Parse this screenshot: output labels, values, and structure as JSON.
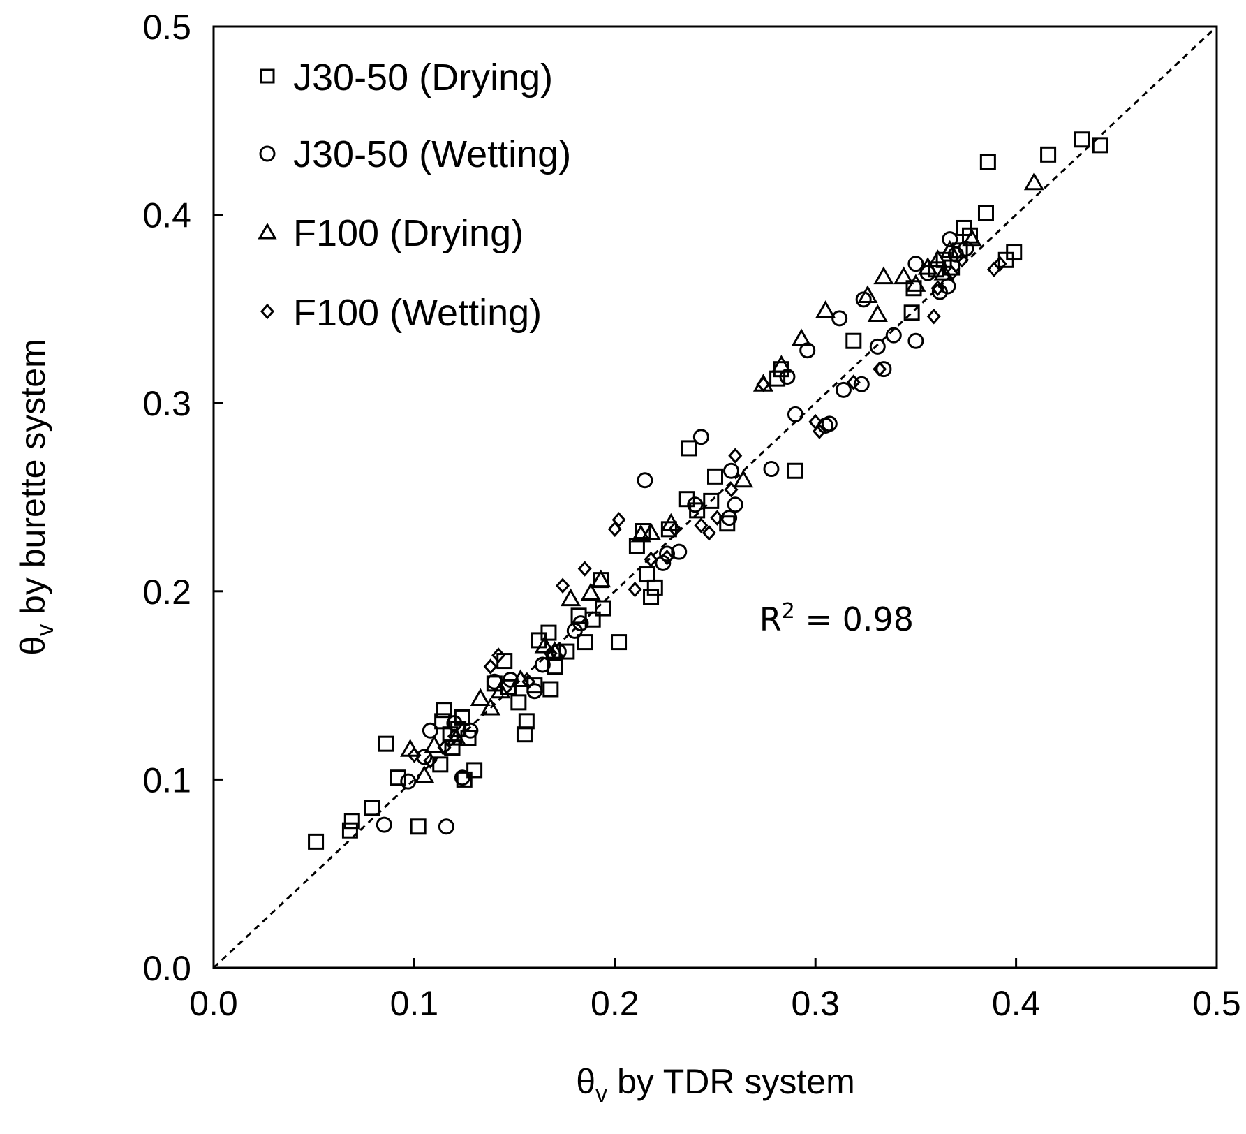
{
  "chart_data": {
    "type": "scatter",
    "title": "",
    "xlabel": {
      "symbol": "θ",
      "subscript": "v",
      "text": " by TDR system"
    },
    "ylabel": {
      "symbol": "θ",
      "subscript": "v",
      "text": " by burette system"
    },
    "xlim": [
      0,
      0.5
    ],
    "ylim": [
      0,
      0.5
    ],
    "xticks": [
      "0.0",
      "0.1",
      "0.2",
      "0.3",
      "0.4",
      "0.5"
    ],
    "yticks": [
      "0.0",
      "0.1",
      "0.2",
      "0.3",
      "0.4",
      "0.5"
    ],
    "xtick_values": [
      0,
      0.1,
      0.2,
      0.3,
      0.4,
      0.5
    ],
    "ytick_values": [
      0,
      0.1,
      0.2,
      0.3,
      0.4,
      0.5
    ],
    "grid": false,
    "legend_position": "top-left",
    "reference_line": {
      "style": "dashed",
      "from": [
        0,
        0
      ],
      "to": [
        0.5,
        0.5
      ]
    },
    "annotation": {
      "text": "R",
      "superscript": "2",
      "tail": " = 0.98",
      "x": 0.272,
      "y": 0.185
    },
    "series": [
      {
        "name": "J30-50 (Drying)",
        "marker": "square",
        "points": [
          [
            0.051,
            0.067
          ],
          [
            0.068,
            0.073
          ],
          [
            0.069,
            0.078
          ],
          [
            0.079,
            0.085
          ],
          [
            0.086,
            0.119
          ],
          [
            0.092,
            0.101
          ],
          [
            0.102,
            0.075
          ],
          [
            0.113,
            0.108
          ],
          [
            0.114,
            0.131
          ],
          [
            0.115,
            0.137
          ],
          [
            0.118,
            0.124
          ],
          [
            0.119,
            0.117
          ],
          [
            0.122,
            0.127
          ],
          [
            0.124,
            0.133
          ],
          [
            0.125,
            0.1
          ],
          [
            0.127,
            0.122
          ],
          [
            0.13,
            0.105
          ],
          [
            0.14,
            0.151
          ],
          [
            0.145,
            0.163
          ],
          [
            0.147,
            0.149
          ],
          [
            0.152,
            0.141
          ],
          [
            0.155,
            0.124
          ],
          [
            0.156,
            0.131
          ],
          [
            0.16,
            0.15
          ],
          [
            0.162,
            0.174
          ],
          [
            0.167,
            0.178
          ],
          [
            0.168,
            0.148
          ],
          [
            0.17,
            0.16
          ],
          [
            0.176,
            0.168
          ],
          [
            0.182,
            0.187
          ],
          [
            0.185,
            0.173
          ],
          [
            0.189,
            0.185
          ],
          [
            0.193,
            0.206
          ],
          [
            0.194,
            0.191
          ],
          [
            0.202,
            0.173
          ],
          [
            0.211,
            0.224
          ],
          [
            0.214,
            0.232
          ],
          [
            0.216,
            0.209
          ],
          [
            0.218,
            0.197
          ],
          [
            0.22,
            0.202
          ],
          [
            0.227,
            0.233
          ],
          [
            0.236,
            0.249
          ],
          [
            0.237,
            0.276
          ],
          [
            0.241,
            0.243
          ],
          [
            0.248,
            0.248
          ],
          [
            0.25,
            0.261
          ],
          [
            0.256,
            0.236
          ],
          [
            0.281,
            0.313
          ],
          [
            0.283,
            0.318
          ],
          [
            0.29,
            0.264
          ],
          [
            0.319,
            0.333
          ],
          [
            0.348,
            0.348
          ],
          [
            0.349,
            0.361
          ],
          [
            0.36,
            0.371
          ],
          [
            0.364,
            0.376
          ],
          [
            0.368,
            0.372
          ],
          [
            0.372,
            0.381
          ],
          [
            0.374,
            0.393
          ],
          [
            0.377,
            0.389
          ],
          [
            0.385,
            0.401
          ],
          [
            0.386,
            0.428
          ],
          [
            0.395,
            0.376
          ],
          [
            0.399,
            0.38
          ],
          [
            0.416,
            0.432
          ],
          [
            0.433,
            0.44
          ],
          [
            0.442,
            0.437
          ]
        ]
      },
      {
        "name": "J30-50 (Wetting)",
        "marker": "circle",
        "points": [
          [
            0.085,
            0.076
          ],
          [
            0.097,
            0.099
          ],
          [
            0.105,
            0.112
          ],
          [
            0.108,
            0.126
          ],
          [
            0.116,
            0.075
          ],
          [
            0.12,
            0.13
          ],
          [
            0.124,
            0.101
          ],
          [
            0.128,
            0.126
          ],
          [
            0.14,
            0.152
          ],
          [
            0.148,
            0.153
          ],
          [
            0.16,
            0.147
          ],
          [
            0.164,
            0.161
          ],
          [
            0.172,
            0.168
          ],
          [
            0.18,
            0.179
          ],
          [
            0.183,
            0.183
          ],
          [
            0.215,
            0.259
          ],
          [
            0.224,
            0.215
          ],
          [
            0.226,
            0.22
          ],
          [
            0.232,
            0.221
          ],
          [
            0.24,
            0.246
          ],
          [
            0.243,
            0.282
          ],
          [
            0.257,
            0.239
          ],
          [
            0.258,
            0.264
          ],
          [
            0.26,
            0.246
          ],
          [
            0.278,
            0.265
          ],
          [
            0.286,
            0.314
          ],
          [
            0.29,
            0.294
          ],
          [
            0.296,
            0.328
          ],
          [
            0.305,
            0.288
          ],
          [
            0.307,
            0.289
          ],
          [
            0.312,
            0.345
          ],
          [
            0.314,
            0.307
          ],
          [
            0.323,
            0.31
          ],
          [
            0.324,
            0.355
          ],
          [
            0.331,
            0.33
          ],
          [
            0.334,
            0.318
          ],
          [
            0.339,
            0.336
          ],
          [
            0.35,
            0.333
          ],
          [
            0.35,
            0.374
          ],
          [
            0.356,
            0.369
          ],
          [
            0.362,
            0.359
          ],
          [
            0.366,
            0.362
          ],
          [
            0.367,
            0.387
          ],
          [
            0.37,
            0.379
          ],
          [
            0.375,
            0.382
          ]
        ]
      },
      {
        "name": "F100 (Drying)",
        "marker": "triangle",
        "points": [
          [
            0.098,
            0.116
          ],
          [
            0.105,
            0.102
          ],
          [
            0.11,
            0.118
          ],
          [
            0.121,
            0.122
          ],
          [
            0.133,
            0.143
          ],
          [
            0.138,
            0.138
          ],
          [
            0.143,
            0.147
          ],
          [
            0.153,
            0.153
          ],
          [
            0.165,
            0.171
          ],
          [
            0.17,
            0.168
          ],
          [
            0.178,
            0.196
          ],
          [
            0.188,
            0.199
          ],
          [
            0.193,
            0.206
          ],
          [
            0.213,
            0.23
          ],
          [
            0.218,
            0.231
          ],
          [
            0.228,
            0.236
          ],
          [
            0.264,
            0.259
          ],
          [
            0.274,
            0.31
          ],
          [
            0.283,
            0.32
          ],
          [
            0.293,
            0.334
          ],
          [
            0.305,
            0.349
          ],
          [
            0.326,
            0.357
          ],
          [
            0.331,
            0.347
          ],
          [
            0.334,
            0.367
          ],
          [
            0.344,
            0.367
          ],
          [
            0.35,
            0.363
          ],
          [
            0.356,
            0.372
          ],
          [
            0.361,
            0.376
          ],
          [
            0.364,
            0.369
          ],
          [
            0.367,
            0.381
          ],
          [
            0.378,
            0.387
          ],
          [
            0.409,
            0.417
          ]
        ]
      },
      {
        "name": "F100 (Wetting)",
        "marker": "diamond",
        "points": [
          [
            0.1,
            0.113
          ],
          [
            0.108,
            0.11
          ],
          [
            0.115,
            0.117
          ],
          [
            0.12,
            0.123
          ],
          [
            0.138,
            0.16
          ],
          [
            0.142,
            0.166
          ],
          [
            0.157,
            0.152
          ],
          [
            0.168,
            0.167
          ],
          [
            0.174,
            0.203
          ],
          [
            0.185,
            0.212
          ],
          [
            0.2,
            0.233
          ],
          [
            0.202,
            0.238
          ],
          [
            0.21,
            0.201
          ],
          [
            0.218,
            0.217
          ],
          [
            0.226,
            0.218
          ],
          [
            0.23,
            0.233
          ],
          [
            0.243,
            0.235
          ],
          [
            0.247,
            0.231
          ],
          [
            0.251,
            0.239
          ],
          [
            0.258,
            0.254
          ],
          [
            0.26,
            0.272
          ],
          [
            0.274,
            0.31
          ],
          [
            0.3,
            0.29
          ],
          [
            0.302,
            0.285
          ],
          [
            0.319,
            0.311
          ],
          [
            0.332,
            0.318
          ],
          [
            0.359,
            0.346
          ],
          [
            0.361,
            0.361
          ],
          [
            0.368,
            0.369
          ],
          [
            0.373,
            0.376
          ],
          [
            0.389,
            0.371
          ],
          [
            0.392,
            0.374
          ]
        ]
      }
    ]
  }
}
